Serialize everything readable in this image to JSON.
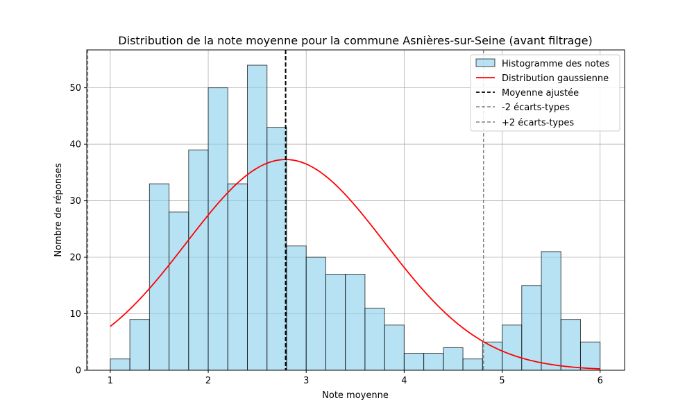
{
  "chart_data": {
    "type": "bar",
    "title": "Distribution de la note moyenne pour la commune Asnières-sur-Seine (avant filtrage)",
    "xlabel": "Note moyenne",
    "ylabel": "Nombre de réponses",
    "xlim": [
      0.76,
      6.25
    ],
    "ylim": [
      0,
      56.7
    ],
    "xticks": [
      1,
      2,
      3,
      4,
      5,
      6
    ],
    "yticks": [
      0,
      10,
      20,
      30,
      40,
      50
    ],
    "grid": true,
    "legend_position": "upper right",
    "histogram": {
      "name": "Histogramme des notes",
      "bin_start": 1.0,
      "bin_width": 0.2,
      "counts": [
        2,
        9,
        33,
        28,
        39,
        50,
        33,
        54,
        43,
        22,
        20,
        17,
        17,
        11,
        8,
        3,
        3,
        4,
        2,
        5,
        8,
        15,
        21,
        9,
        5
      ],
      "fill_color": "#87ceeb",
      "edge_color": "#000000"
    },
    "gaussian": {
      "name": "Distribution gaussienne",
      "mean": 2.79,
      "std": 1.01,
      "peak": 37.3,
      "x_range": [
        1,
        6
      ],
      "color": "#ff0000"
    },
    "mean_line": {
      "name": "Moyenne ajustée",
      "x": 2.79,
      "color": "#000000"
    },
    "minus2sd_line": {
      "name": "-2 écarts-types",
      "x": 0.77,
      "color": "#808080"
    },
    "plus2sd_line": {
      "name": "+2 écarts-types",
      "x": 4.81,
      "color": "#808080"
    }
  }
}
